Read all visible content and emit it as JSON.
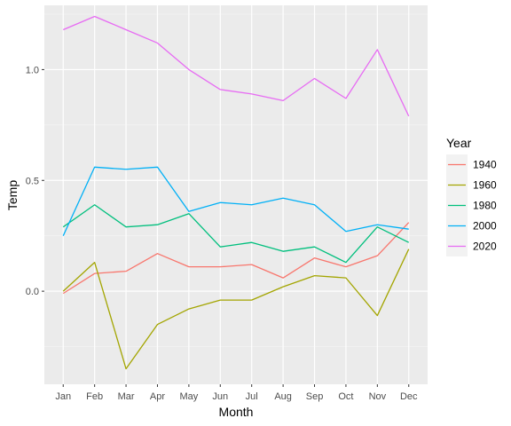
{
  "chart_data": {
    "type": "line",
    "xlabel": "Month",
    "ylabel": "Temp",
    "categories": [
      "Jan",
      "Feb",
      "Mar",
      "Apr",
      "May",
      "Jun",
      "Jul",
      "Aug",
      "Sep",
      "Oct",
      "Nov",
      "Dec"
    ],
    "yticks": [
      0.0,
      0.5,
      1.0
    ],
    "ytick_labels": [
      "0.0",
      "0.5",
      "1.0"
    ],
    "ylim": [
      -0.42,
      1.29
    ],
    "grid": true,
    "legend": {
      "title": "Year",
      "position": "right"
    },
    "series": [
      {
        "name": "1940",
        "color": "#F8766D",
        "values": [
          -0.01,
          0.08,
          0.09,
          0.17,
          0.11,
          0.11,
          0.12,
          0.06,
          0.15,
          0.11,
          0.16,
          0.31
        ]
      },
      {
        "name": "1960",
        "color": "#A3A500",
        "values": [
          0.0,
          0.13,
          -0.35,
          -0.15,
          -0.08,
          -0.04,
          -0.04,
          0.02,
          0.07,
          0.06,
          -0.11,
          0.19
        ]
      },
      {
        "name": "1980",
        "color": "#00BF7D",
        "values": [
          0.29,
          0.39,
          0.29,
          0.3,
          0.35,
          0.2,
          0.22,
          0.18,
          0.2,
          0.13,
          0.29,
          0.22
        ]
      },
      {
        "name": "2000",
        "color": "#00B0F6",
        "values": [
          0.25,
          0.56,
          0.55,
          0.56,
          0.36,
          0.4,
          0.39,
          0.42,
          0.39,
          0.27,
          0.3,
          0.28
        ]
      },
      {
        "name": "2020",
        "color": "#E76BF3",
        "values": [
          1.18,
          1.24,
          1.18,
          1.12,
          1.0,
          0.91,
          0.89,
          0.86,
          0.96,
          0.87,
          1.09,
          0.79
        ]
      }
    ]
  }
}
